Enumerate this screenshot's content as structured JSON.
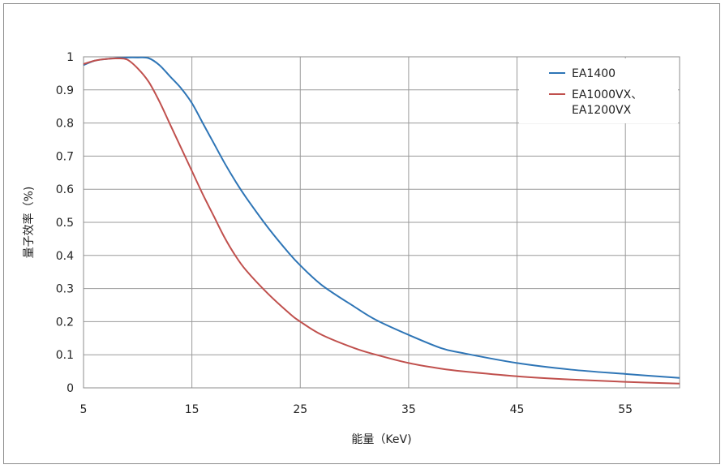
{
  "chart_data": {
    "type": "line",
    "title": "",
    "xlabel": "能量（KeV)",
    "ylabel": "量子效率（%)",
    "xlim": [
      5,
      60
    ],
    "ylim": [
      0,
      1
    ],
    "x_ticks": [
      "5",
      "15",
      "25",
      "35",
      "45",
      "55"
    ],
    "y_ticks": [
      "0",
      "0.1",
      "0.2",
      "0.3",
      "0.4",
      "0.5",
      "0.6",
      "0.7",
      "0.8",
      "0.9",
      "1"
    ],
    "grid": true,
    "legend_position": "top-right",
    "series": [
      {
        "name": "EA1400",
        "color": "#2e75b6",
        "points": [
          [
            5,
            0.975
          ],
          [
            6,
            0.988
          ],
          [
            7,
            0.993
          ],
          [
            8,
            0.996
          ],
          [
            9,
            0.998
          ],
          [
            10,
            0.998
          ],
          [
            11,
            0.996
          ],
          [
            12,
            0.975
          ],
          [
            13,
            0.94
          ],
          [
            14,
            0.905
          ],
          [
            15,
            0.86
          ],
          [
            16,
            0.8
          ],
          [
            17,
            0.74
          ],
          [
            18,
            0.68
          ],
          [
            19,
            0.625
          ],
          [
            20,
            0.575
          ],
          [
            22,
            0.485
          ],
          [
            24,
            0.405
          ],
          [
            25,
            0.37
          ],
          [
            27,
            0.31
          ],
          [
            30,
            0.245
          ],
          [
            32,
            0.205
          ],
          [
            35,
            0.16
          ],
          [
            38,
            0.12
          ],
          [
            40,
            0.105
          ],
          [
            45,
            0.075
          ],
          [
            50,
            0.055
          ],
          [
            55,
            0.042
          ],
          [
            60,
            0.03
          ]
        ]
      },
      {
        "name": "EA1000VX、EA1200VX",
        "color": "#c0504d",
        "points": [
          [
            5,
            0.978
          ],
          [
            6,
            0.988
          ],
          [
            7,
            0.993
          ],
          [
            8,
            0.995
          ],
          [
            9,
            0.992
          ],
          [
            10,
            0.965
          ],
          [
            11,
            0.925
          ],
          [
            12,
            0.865
          ],
          [
            13,
            0.795
          ],
          [
            14,
            0.725
          ],
          [
            15,
            0.655
          ],
          [
            16,
            0.585
          ],
          [
            17,
            0.52
          ],
          [
            18,
            0.455
          ],
          [
            19,
            0.4
          ],
          [
            20,
            0.355
          ],
          [
            22,
            0.285
          ],
          [
            24,
            0.225
          ],
          [
            25,
            0.2
          ],
          [
            27,
            0.16
          ],
          [
            30,
            0.12
          ],
          [
            32,
            0.1
          ],
          [
            35,
            0.075
          ],
          [
            38,
            0.058
          ],
          [
            40,
            0.05
          ],
          [
            45,
            0.035
          ],
          [
            50,
            0.025
          ],
          [
            55,
            0.018
          ],
          [
            60,
            0.013
          ]
        ]
      }
    ]
  }
}
